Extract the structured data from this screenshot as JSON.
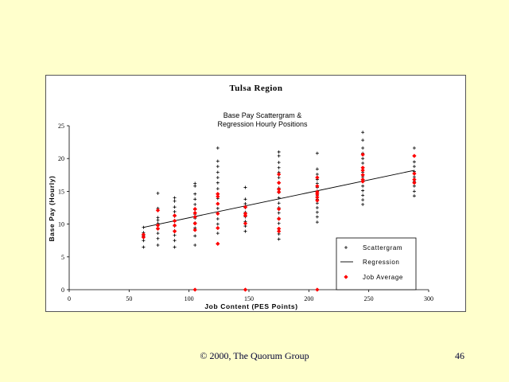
{
  "footer": {
    "copyright": "© 2000, The Quorum Group",
    "page_number": "46"
  },
  "colors": {
    "background": "#ffffcc",
    "average_marker": "#ff0000",
    "scatter_marker": "#000000",
    "line": "#000000"
  },
  "chart_data": {
    "type": "scatter",
    "title": "Tulsa Region",
    "subtitle_lines": [
      "Base Pay Scattergram &",
      "Regression Hourly  Positions"
    ],
    "xlabel": "Job Content (PES Points)",
    "ylabel": "Base Pay (Hourly)",
    "xlim": [
      0,
      300
    ],
    "ylim": [
      0,
      25
    ],
    "x_ticks": [
      0,
      50,
      100,
      150,
      200,
      250,
      300
    ],
    "y_ticks": [
      0,
      5,
      10,
      15,
      20,
      25
    ],
    "grid": false,
    "legend_position": "bottom-right",
    "legend": [
      "Scattergram",
      "Regression",
      "Job Average"
    ],
    "regression": {
      "x": [
        62,
        288
      ],
      "y": [
        9.5,
        18.2
      ]
    },
    "series": [
      {
        "name": "Scattergram",
        "marker": "+",
        "points": [
          [
            62,
            6.5
          ],
          [
            62,
            7.5
          ],
          [
            62,
            8.2
          ],
          [
            62,
            8.7
          ],
          [
            62,
            9.5
          ],
          [
            74,
            6.8
          ],
          [
            74,
            7.8
          ],
          [
            74,
            8.6
          ],
          [
            74,
            9.4
          ],
          [
            74,
            10.1
          ],
          [
            74,
            10.6
          ],
          [
            74,
            11.0
          ],
          [
            74,
            12.1
          ],
          [
            74,
            12.4
          ],
          [
            74,
            14.7
          ],
          [
            88,
            6.5
          ],
          [
            88,
            7.5
          ],
          [
            88,
            8.3
          ],
          [
            88,
            9.0
          ],
          [
            88,
            9.7
          ],
          [
            88,
            10.4
          ],
          [
            88,
            11.2
          ],
          [
            88,
            11.9
          ],
          [
            88,
            12.6
          ],
          [
            88,
            13.5
          ],
          [
            88,
            14.0
          ],
          [
            105,
            6.8
          ],
          [
            105,
            8.2
          ],
          [
            105,
            9.4
          ],
          [
            105,
            10.2
          ],
          [
            105,
            10.9
          ],
          [
            105,
            11.5
          ],
          [
            105,
            12.2
          ],
          [
            105,
            13.0
          ],
          [
            105,
            13.8
          ],
          [
            105,
            14.6
          ],
          [
            105,
            15.8
          ],
          [
            105,
            16.2
          ],
          [
            124,
            7.0
          ],
          [
            124,
            8.6
          ],
          [
            124,
            10.0
          ],
          [
            124,
            10.8
          ],
          [
            124,
            11.6
          ],
          [
            124,
            12.4
          ],
          [
            124,
            13.1
          ],
          [
            124,
            13.9
          ],
          [
            124,
            14.6
          ],
          [
            124,
            15.4
          ],
          [
            124,
            16.3
          ],
          [
            124,
            17.1
          ],
          [
            124,
            17.9
          ],
          [
            124,
            18.8
          ],
          [
            124,
            19.6
          ],
          [
            124,
            21.6
          ],
          [
            147,
            8.9
          ],
          [
            147,
            9.7
          ],
          [
            147,
            10.4
          ],
          [
            147,
            11.1
          ],
          [
            147,
            11.8
          ],
          [
            147,
            12.5
          ],
          [
            147,
            13.1
          ],
          [
            147,
            13.8
          ],
          [
            147,
            15.6
          ],
          [
            175,
            7.7
          ],
          [
            175,
            8.5
          ],
          [
            175,
            9.3
          ],
          [
            175,
            10.1
          ],
          [
            175,
            10.9
          ],
          [
            175,
            11.7
          ],
          [
            175,
            12.5
          ],
          [
            175,
            13.2
          ],
          [
            175,
            14.0
          ],
          [
            175,
            14.8
          ],
          [
            175,
            15.5
          ],
          [
            175,
            16.3
          ],
          [
            175,
            17.1
          ],
          [
            175,
            17.9
          ],
          [
            175,
            18.6
          ],
          [
            175,
            19.4
          ],
          [
            175,
            20.4
          ],
          [
            175,
            21.0
          ],
          [
            207,
            10.3
          ],
          [
            207,
            11.1
          ],
          [
            207,
            11.8
          ],
          [
            207,
            12.5
          ],
          [
            207,
            13.2
          ],
          [
            207,
            13.8
          ],
          [
            207,
            14.4
          ],
          [
            207,
            15.0
          ],
          [
            207,
            15.6
          ],
          [
            207,
            16.2
          ],
          [
            207,
            16.8
          ],
          [
            207,
            17.6
          ],
          [
            207,
            18.4
          ],
          [
            207,
            20.8
          ],
          [
            245,
            13.0
          ],
          [
            245,
            13.7
          ],
          [
            245,
            14.4
          ],
          [
            245,
            15.1
          ],
          [
            245,
            15.8
          ],
          [
            245,
            16.5
          ],
          [
            245,
            17.2
          ],
          [
            245,
            17.9
          ],
          [
            245,
            18.6
          ],
          [
            245,
            19.3
          ],
          [
            245,
            20.0
          ],
          [
            245,
            20.8
          ],
          [
            245,
            21.6
          ],
          [
            245,
            22.8
          ],
          [
            245,
            24.0
          ],
          [
            288,
            14.3
          ],
          [
            288,
            15.0
          ],
          [
            288,
            15.8
          ],
          [
            288,
            16.5
          ],
          [
            288,
            17.2
          ],
          [
            288,
            18.0
          ],
          [
            288,
            18.8
          ],
          [
            288,
            19.5
          ],
          [
            288,
            20.4
          ],
          [
            288,
            21.6
          ]
        ]
      },
      {
        "name": "Job Average",
        "marker": "diamond",
        "points": [
          [
            62,
            8.0
          ],
          [
            62,
            8.4
          ],
          [
            74,
            9.3
          ],
          [
            74,
            9.8
          ],
          [
            74,
            12.1
          ],
          [
            88,
            8.9
          ],
          [
            88,
            9.8
          ],
          [
            88,
            10.5
          ],
          [
            88,
            11.3
          ],
          [
            105,
            0
          ],
          [
            105,
            9.1
          ],
          [
            105,
            10.1
          ],
          [
            105,
            11.1
          ],
          [
            105,
            11.7
          ],
          [
            105,
            12.3
          ],
          [
            124,
            7.0
          ],
          [
            124,
            9.4
          ],
          [
            124,
            11.6
          ],
          [
            124,
            13.1
          ],
          [
            124,
            14.2
          ],
          [
            124,
            14.6
          ],
          [
            147,
            0
          ],
          [
            147,
            10.1
          ],
          [
            147,
            11.3
          ],
          [
            147,
            11.6
          ],
          [
            147,
            12.6
          ],
          [
            175,
            8.9
          ],
          [
            175,
            9.3
          ],
          [
            175,
            10.8
          ],
          [
            175,
            12.3
          ],
          [
            175,
            14.9
          ],
          [
            175,
            15.3
          ],
          [
            175,
            16.3
          ],
          [
            175,
            17.6
          ],
          [
            207,
            0
          ],
          [
            207,
            13.6
          ],
          [
            207,
            14.1
          ],
          [
            207,
            14.6
          ],
          [
            207,
            14.9
          ],
          [
            207,
            15.8
          ],
          [
            207,
            17.1
          ],
          [
            245,
            16.5
          ],
          [
            245,
            16.8
          ],
          [
            245,
            17.5
          ],
          [
            245,
            18.2
          ],
          [
            245,
            18.6
          ],
          [
            245,
            20.6
          ],
          [
            288,
            16.3
          ],
          [
            288,
            16.8
          ],
          [
            288,
            17.7
          ],
          [
            288,
            20.4
          ]
        ]
      }
    ]
  }
}
